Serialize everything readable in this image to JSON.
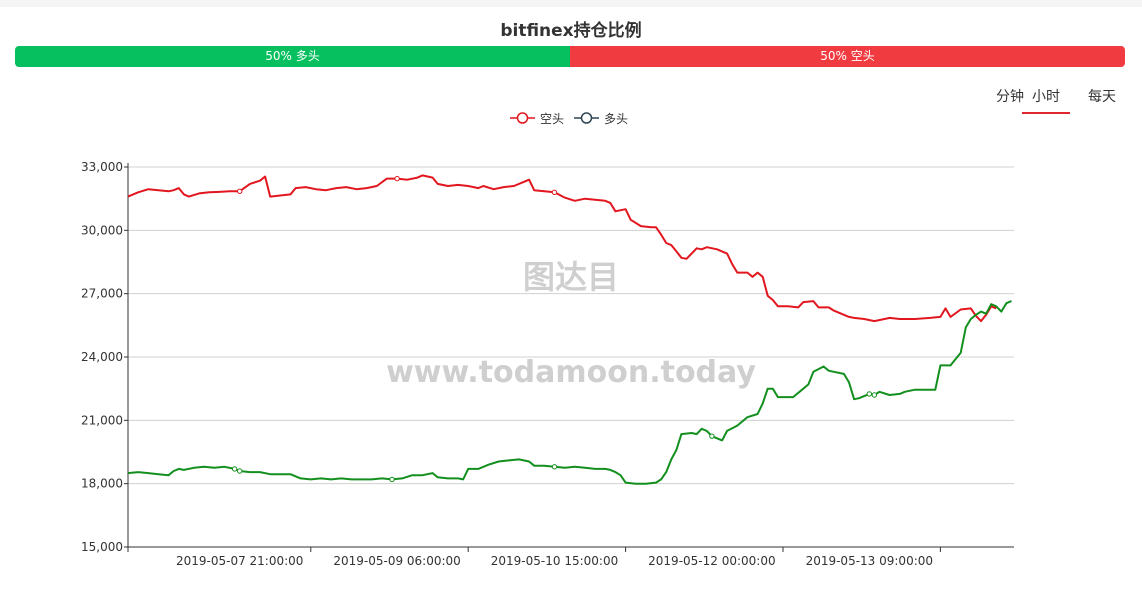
{
  "title": "bitfinex持仓比例",
  "ratio_bar": {
    "long": {
      "fraction": 0.5,
      "label": "50% 多头",
      "color": "#06c05f"
    },
    "short": {
      "fraction": 0.5,
      "label": "50% 空头",
      "color": "#f03c41"
    }
  },
  "tabs": [
    {
      "label": "分钟",
      "active": false
    },
    {
      "label": "小时",
      "active": true
    },
    {
      "label": "每天",
      "active": false
    }
  ],
  "watermark": {
    "cn": "图达目",
    "url": "www.todamoon.today"
  },
  "chart_data": {
    "type": "line",
    "title": "",
    "xlabel": "",
    "ylabel": "",
    "ylim": [
      15000,
      33000
    ],
    "y_ticks": [
      15000,
      18000,
      21000,
      24000,
      27000,
      30000,
      33000
    ],
    "y_tick_labels": [
      "15,000",
      "18,000",
      "21,000",
      "24,000",
      "27,000",
      "30,000",
      "33,000"
    ],
    "x_range_hours": [
      0,
      171
    ],
    "x_start": "2019-05-06 23:00:00",
    "x_tick_labels": [
      {
        "x": 22,
        "label": "2019-05-07 21:00:00"
      },
      {
        "x": 53,
        "label": "2019-05-09 06:00:00"
      },
      {
        "x": 84,
        "label": "2019-05-10 15:00:00"
      },
      {
        "x": 115,
        "label": "2019-05-12 00:00:00"
      },
      {
        "x": 146,
        "label": "2019-05-13 09:00:00"
      }
    ],
    "x_ticks": [
      0,
      36,
      67,
      98,
      129,
      160
    ],
    "grid": true,
    "legend_position": "top-center",
    "series": [
      {
        "name": "空头",
        "color": "#e2161e",
        "points": [
          [
            0,
            31600
          ],
          [
            2,
            31800
          ],
          [
            4,
            31950
          ],
          [
            6,
            31900
          ],
          [
            8,
            31850
          ],
          [
            9,
            31900
          ],
          [
            10,
            32000
          ],
          [
            11,
            31700
          ],
          [
            12,
            31600
          ],
          [
            14,
            31750
          ],
          [
            16,
            31800
          ],
          [
            18,
            31820
          ],
          [
            20,
            31850
          ],
          [
            22,
            31850
          ],
          [
            24,
            32200
          ],
          [
            26,
            32350
          ],
          [
            27,
            32550
          ],
          [
            28,
            31600
          ],
          [
            30,
            31650
          ],
          [
            32,
            31700
          ],
          [
            33,
            32000
          ],
          [
            35,
            32050
          ],
          [
            37,
            31950
          ],
          [
            39,
            31900
          ],
          [
            41,
            32000
          ],
          [
            43,
            32050
          ],
          [
            45,
            31950
          ],
          [
            47,
            32000
          ],
          [
            49,
            32100
          ],
          [
            51,
            32450
          ],
          [
            53,
            32450
          ],
          [
            55,
            32400
          ],
          [
            57,
            32500
          ],
          [
            58,
            32600
          ],
          [
            60,
            32500
          ],
          [
            61,
            32200
          ],
          [
            63,
            32100
          ],
          [
            65,
            32150
          ],
          [
            67,
            32100
          ],
          [
            69,
            32000
          ],
          [
            70,
            32100
          ],
          [
            72,
            31950
          ],
          [
            74,
            32050
          ],
          [
            76,
            32100
          ],
          [
            78,
            32300
          ],
          [
            79,
            32400
          ],
          [
            80,
            31900
          ],
          [
            82,
            31850
          ],
          [
            84,
            31800
          ],
          [
            86,
            31550
          ],
          [
            88,
            31400
          ],
          [
            90,
            31500
          ],
          [
            92,
            31450
          ],
          [
            94,
            31400
          ],
          [
            95,
            31300
          ],
          [
            96,
            30900
          ],
          [
            98,
            31000
          ],
          [
            99,
            30500
          ],
          [
            101,
            30200
          ],
          [
            103,
            30150
          ],
          [
            104,
            30150
          ],
          [
            105,
            29800
          ],
          [
            106,
            29400
          ],
          [
            107,
            29300
          ],
          [
            108,
            29000
          ],
          [
            109,
            28700
          ],
          [
            110,
            28650
          ],
          [
            112,
            29150
          ],
          [
            113,
            29100
          ],
          [
            114,
            29200
          ],
          [
            116,
            29100
          ],
          [
            118,
            28900
          ],
          [
            119,
            28400
          ],
          [
            120,
            28000
          ],
          [
            122,
            28000
          ],
          [
            123,
            27800
          ],
          [
            124,
            28000
          ],
          [
            125,
            27800
          ],
          [
            126,
            26900
          ],
          [
            127,
            26700
          ],
          [
            128,
            26400
          ],
          [
            130,
            26400
          ],
          [
            132,
            26350
          ],
          [
            133,
            26600
          ],
          [
            135,
            26650
          ],
          [
            136,
            26350
          ],
          [
            138,
            26350
          ],
          [
            139,
            26200
          ],
          [
            141,
            26000
          ],
          [
            142,
            25900
          ],
          [
            143,
            25850
          ],
          [
            145,
            25800
          ],
          [
            147,
            25700
          ],
          [
            149,
            25800
          ],
          [
            150,
            25850
          ],
          [
            152,
            25800
          ],
          [
            155,
            25800
          ],
          [
            158,
            25850
          ],
          [
            160,
            25900
          ],
          [
            161,
            26300
          ],
          [
            162,
            25900
          ],
          [
            164,
            26250
          ],
          [
            166,
            26300
          ],
          [
            167,
            25950
          ],
          [
            168,
            25700
          ],
          [
            169,
            26000
          ],
          [
            170,
            26400
          ],
          [
            171,
            26300
          ]
        ]
      },
      {
        "name": "多头",
        "color": "#138f1e",
        "points": [
          [
            0,
            18500
          ],
          [
            2,
            18550
          ],
          [
            4,
            18500
          ],
          [
            6,
            18450
          ],
          [
            8,
            18400
          ],
          [
            9,
            18600
          ],
          [
            10,
            18700
          ],
          [
            11,
            18650
          ],
          [
            13,
            18750
          ],
          [
            15,
            18800
          ],
          [
            17,
            18750
          ],
          [
            19,
            18800
          ],
          [
            21,
            18700
          ],
          [
            22,
            18600
          ],
          [
            24,
            18550
          ],
          [
            26,
            18550
          ],
          [
            28,
            18450
          ],
          [
            30,
            18450
          ],
          [
            32,
            18450
          ],
          [
            34,
            18250
          ],
          [
            36,
            18200
          ],
          [
            38,
            18250
          ],
          [
            40,
            18200
          ],
          [
            42,
            18250
          ],
          [
            44,
            18200
          ],
          [
            46,
            18200
          ],
          [
            48,
            18200
          ],
          [
            50,
            18250
          ],
          [
            52,
            18200
          ],
          [
            54,
            18250
          ],
          [
            56,
            18400
          ],
          [
            58,
            18400
          ],
          [
            60,
            18500
          ],
          [
            61,
            18300
          ],
          [
            63,
            18250
          ],
          [
            65,
            18250
          ],
          [
            66,
            18200
          ],
          [
            67,
            18700
          ],
          [
            69,
            18700
          ],
          [
            71,
            18900
          ],
          [
            73,
            19050
          ],
          [
            75,
            19100
          ],
          [
            77,
            19150
          ],
          [
            79,
            19050
          ],
          [
            80,
            18850
          ],
          [
            82,
            18850
          ],
          [
            84,
            18800
          ],
          [
            86,
            18750
          ],
          [
            88,
            18800
          ],
          [
            90,
            18750
          ],
          [
            92,
            18700
          ],
          [
            94,
            18700
          ],
          [
            95,
            18650
          ],
          [
            96,
            18550
          ],
          [
            97,
            18400
          ],
          [
            98,
            18050
          ],
          [
            100,
            18000
          ],
          [
            102,
            18000
          ],
          [
            104,
            18050
          ],
          [
            105,
            18200
          ],
          [
            106,
            18550
          ],
          [
            107,
            19150
          ],
          [
            108,
            19600
          ],
          [
            109,
            20350
          ],
          [
            111,
            20400
          ],
          [
            112,
            20350
          ],
          [
            113,
            20600
          ],
          [
            114,
            20500
          ],
          [
            115,
            20250
          ],
          [
            116,
            20150
          ],
          [
            117,
            20050
          ],
          [
            118,
            20500
          ],
          [
            120,
            20750
          ],
          [
            122,
            21150
          ],
          [
            124,
            21300
          ],
          [
            125,
            21800
          ],
          [
            126,
            22500
          ],
          [
            127,
            22500
          ],
          [
            128,
            22100
          ],
          [
            129,
            22100
          ],
          [
            131,
            22100
          ],
          [
            133,
            22500
          ],
          [
            134,
            22700
          ],
          [
            135,
            23300
          ],
          [
            137,
            23550
          ],
          [
            138,
            23350
          ],
          [
            139,
            23300
          ],
          [
            141,
            23200
          ],
          [
            142,
            22800
          ],
          [
            143,
            22000
          ],
          [
            144,
            22050
          ],
          [
            146,
            22250
          ],
          [
            147,
            22200
          ],
          [
            148,
            22350
          ],
          [
            150,
            22200
          ],
          [
            152,
            22250
          ],
          [
            153,
            22350
          ],
          [
            155,
            22450
          ],
          [
            157,
            22450
          ],
          [
            159,
            22450
          ],
          [
            160,
            23600
          ],
          [
            162,
            23600
          ],
          [
            164,
            24200
          ],
          [
            165,
            25400
          ],
          [
            166,
            25800
          ],
          [
            167,
            26000
          ],
          [
            168,
            26150
          ],
          [
            169,
            26050
          ],
          [
            170,
            26500
          ],
          [
            171,
            26400
          ],
          [
            172,
            26150
          ],
          [
            173,
            26550
          ],
          [
            174,
            26650
          ]
        ]
      }
    ]
  }
}
